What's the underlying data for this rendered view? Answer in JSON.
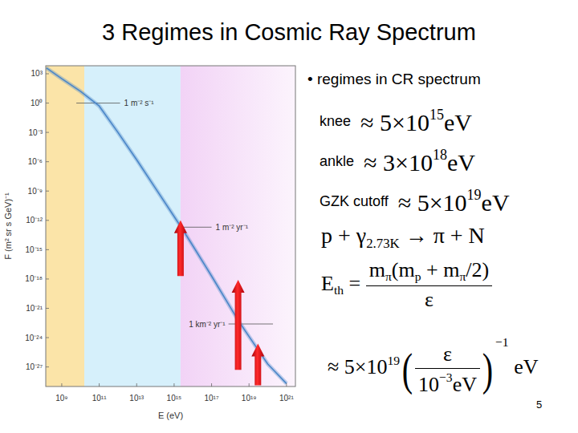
{
  "slide": {
    "title": "3 Regimes in Cosmic Ray Spectrum",
    "bullet": "• regimes in CR spectrum",
    "items": [
      {
        "label": "knee",
        "value": [
          "≈ 5×10",
          {
            "sup": "15"
          },
          "eV"
        ]
      },
      {
        "label": "ankle",
        "value": [
          "≈ 3×10",
          {
            "sup": "18"
          },
          "eV"
        ]
      },
      {
        "label": "GZK cutoff",
        "value": [
          "≈ 5×10",
          {
            "sup": "19"
          },
          "eV"
        ]
      }
    ],
    "reaction": [
      "p + ",
      {
        "base": "γ",
        "sub": "2.73K"
      },
      " → π + N"
    ],
    "threshold": [
      {
        "base": "E",
        "sub": "th"
      },
      " = ",
      {
        "num": [
          {
            "base": "m",
            "sub": "π"
          },
          "(",
          {
            "base": "m",
            "sub": "p"
          },
          " + ",
          {
            "base": "m",
            "sub": "π"
          },
          "/2)"
        ],
        "den": [
          "ε"
        ]
      }
    ],
    "estimate": [
      "≈ 5×10",
      {
        "sup": "19"
      },
      {
        "open": "(",
        "body": [
          {
            "num": [
              "ε"
            ],
            "den": [
              "10",
              {
                "sup": "−3"
              },
              "eV"
            ]
          }
        ],
        "close": ")",
        "sup": "−1"
      },
      " eV"
    ],
    "page": "5"
  },
  "chart_data": {
    "type": "line",
    "x_label": "E (eV)",
    "y_label": "F (m² sr s GeV)⁻¹",
    "log": true,
    "grid": false,
    "color": "#4a86c8",
    "x": [
      150000000.0,
      1000000000.0,
      10000000000.0,
      100000000000.0,
      1000000000000.0,
      10000000000000.0,
      100000000000000.0,
      1000000000000000.0,
      3000000000000000.0,
      1e+16,
      1e+17,
      1e+18,
      3e+18,
      1e+19,
      1e+20,
      1e+21
    ],
    "values": [
      3981,
      316,
      15.8,
      0.5,
      0.001,
      1.6e-06,
      2e-09,
      2.5e-12,
      1e-13,
      2.5e-15,
      2e-18,
      1.3e-21,
      4e-23,
      1.3e-24,
      2e-27,
      2e-29
    ],
    "xlim": [
      140000000.0,
      3e+21
    ],
    "ylim": [
      1e-29,
      6600
    ],
    "xticks": [
      {
        "value": 1000000000.0,
        "label": "10⁹"
      },
      {
        "value": 100000000000.0,
        "label": "10¹¹"
      },
      {
        "value": 10000000000000.0,
        "label": "10¹³"
      },
      {
        "value": 1000000000000000.0,
        "label": "10¹⁵"
      },
      {
        "value": 1e+17,
        "label": "10¹⁷"
      },
      {
        "value": 1e+19,
        "label": "10¹⁹"
      },
      {
        "value": 1e+21,
        "label": "10²¹"
      }
    ],
    "yticks": [
      {
        "value": 1000,
        "label": "10³"
      },
      {
        "value": 1,
        "label": "10⁰"
      },
      {
        "value": 0.001,
        "label": "10⁻³"
      },
      {
        "value": 1e-06,
        "label": "10⁻⁶"
      },
      {
        "value": 1e-09,
        "label": "10⁻⁹"
      },
      {
        "value": 1e-12,
        "label": "10⁻¹²"
      },
      {
        "value": 1e-15,
        "label": "10⁻¹⁵"
      },
      {
        "value": 1e-18,
        "label": "10⁻¹⁸"
      },
      {
        "value": 1e-21,
        "label": "10⁻²¹"
      },
      {
        "value": 1e-24,
        "label": "10⁻²⁴"
      },
      {
        "value": 1e-27,
        "label": "10⁻²⁷"
      }
    ],
    "regions": [
      {
        "from": 140000000.0,
        "to": 16000000000.0,
        "color": "#fbe4a8"
      },
      {
        "from": 16000000000.0,
        "to": 2200000000000000.0,
        "color": "#d6f0fb"
      },
      {
        "from": 2200000000000000.0,
        "to": 3e+21,
        "color": "#f2d3f6"
      }
    ],
    "reference_lines": [
      {
        "label": "1 m⁻² s⁻¹",
        "y": 1,
        "x_from": 6000000000.0,
        "x_to": 1300000000000.0
      },
      {
        "label": "1 m⁻² yr⁻¹",
        "y": 2e-13,
        "x_from": 3000000000000000.0,
        "x_to": 1e+17
      },
      {
        "label": "1 km⁻² yr⁻¹",
        "y": 2.5e-23,
        "x_from": 8e+17,
        "x_to": 1.9e+20
      }
    ],
    "arrows": [
      {
        "x": 2200000000000000.0,
        "y_from": 2e-18,
        "y_to": 1e-12
      },
      {
        "x": 2.6e+18,
        "y_from": 5e-28,
        "y_to": 8e-19
      },
      {
        "x": 3e+19,
        "y_from": 1.3e-29,
        "y_to": 2.5e-25
      }
    ]
  }
}
